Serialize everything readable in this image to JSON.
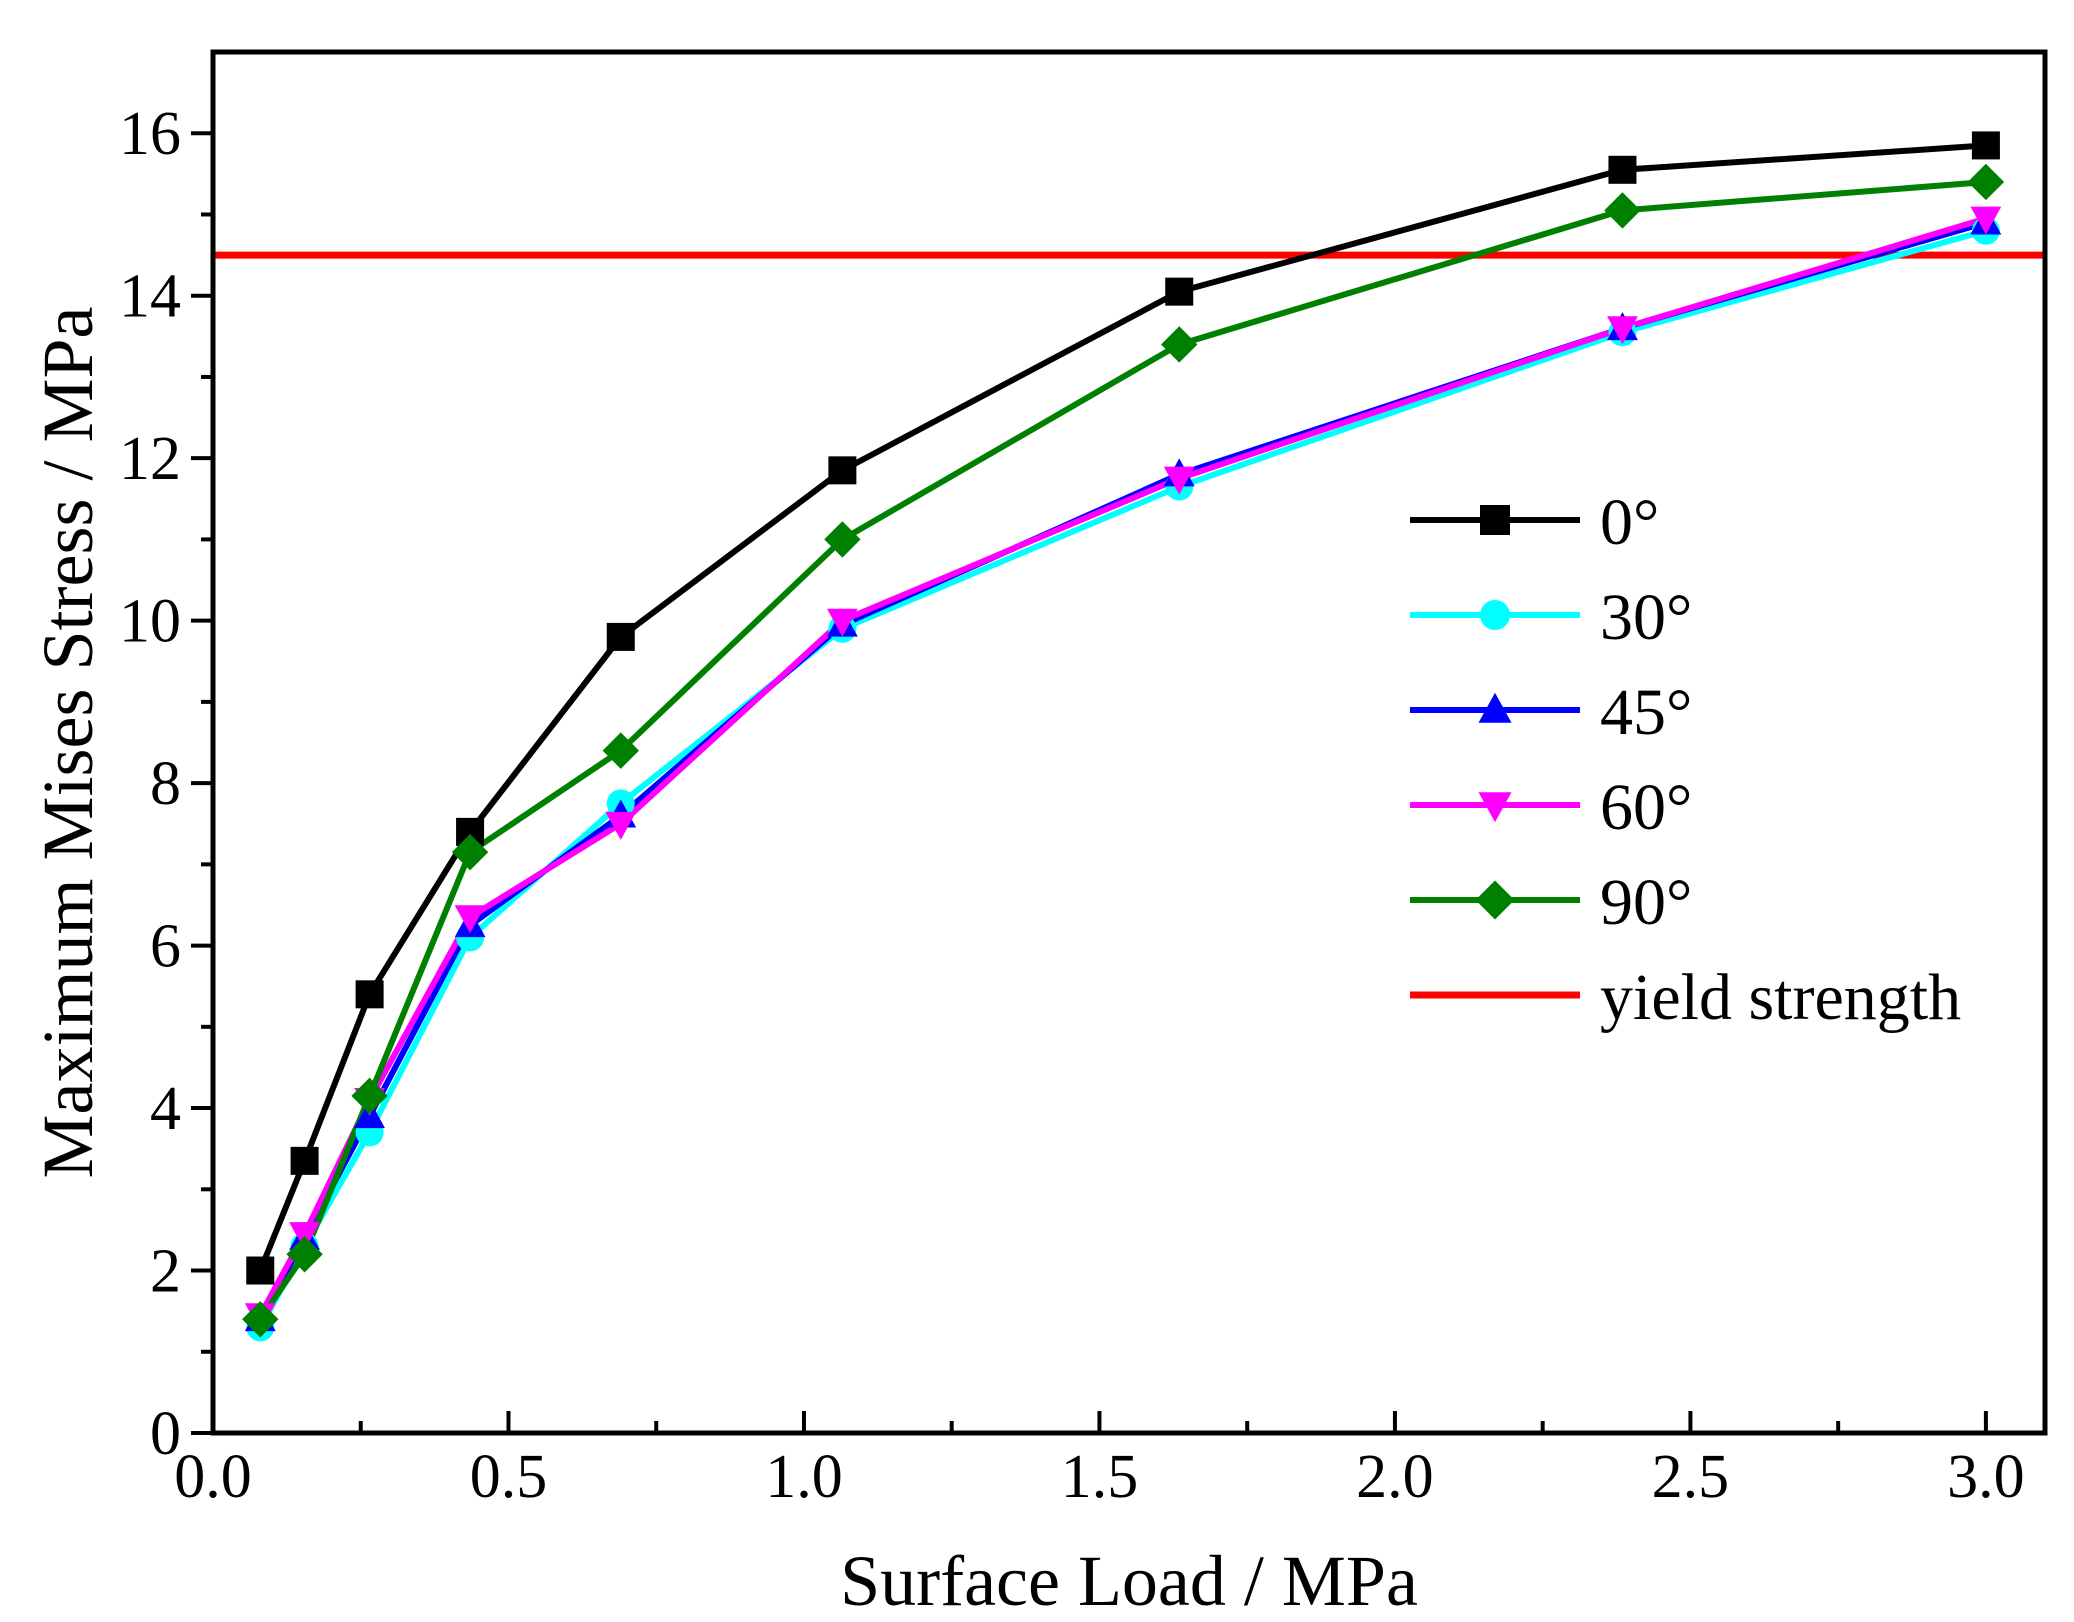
{
  "chart_data": {
    "type": "line",
    "title": "",
    "xlabel": "Surface  Load / MPa",
    "ylabel": "Maximum Mises Stress / MPa",
    "xlim": [
      0.0,
      3.1
    ],
    "ylim": [
      0,
      17
    ],
    "xticks": [
      "0.0",
      "0.5",
      "1.0",
      "1.5",
      "2.0",
      "2.5",
      "3.0"
    ],
    "xtick_values": [
      0.0,
      0.5,
      1.0,
      1.5,
      2.0,
      2.5,
      3.0
    ],
    "yticks": [
      "0",
      "2",
      "4",
      "6",
      "8",
      "10",
      "12",
      "14",
      "16"
    ],
    "ytick_values": [
      0,
      2,
      4,
      6,
      8,
      10,
      12,
      14,
      16
    ],
    "legend_position": "center-right",
    "x": [
      0.08,
      0.155,
      0.265,
      0.435,
      0.69,
      1.065,
      1.635,
      2.385,
      3.0
    ],
    "series": [
      {
        "name": "0°",
        "color": "#000000",
        "marker": "square",
        "values": [
          2.0,
          3.35,
          5.4,
          7.4,
          9.8,
          11.85,
          14.05,
          15.55,
          15.85
        ]
      },
      {
        "name": "30°",
        "color": "#00ffff",
        "marker": "circle",
        "values": [
          1.3,
          2.3,
          3.7,
          6.1,
          7.75,
          9.9,
          11.65,
          13.55,
          14.8
        ]
      },
      {
        "name": "45°",
        "color": "#0000ff",
        "marker": "triangle-up",
        "values": [
          1.4,
          2.4,
          3.9,
          6.25,
          7.6,
          9.95,
          11.8,
          13.6,
          14.9
        ]
      },
      {
        "name": "60°",
        "color": "#ff00ff",
        "marker": "triangle-down",
        "values": [
          1.45,
          2.45,
          4.1,
          6.35,
          7.5,
          10.0,
          11.75,
          13.6,
          14.95
        ]
      },
      {
        "name": "90°",
        "color": "#008000",
        "marker": "diamond",
        "values": [
          1.4,
          2.2,
          4.15,
          7.15,
          8.4,
          11.0,
          13.4,
          15.05,
          15.4
        ]
      }
    ],
    "reference_lines": [
      {
        "name": "yield strength",
        "color": "#ff0000",
        "y": 14.5
      }
    ]
  }
}
